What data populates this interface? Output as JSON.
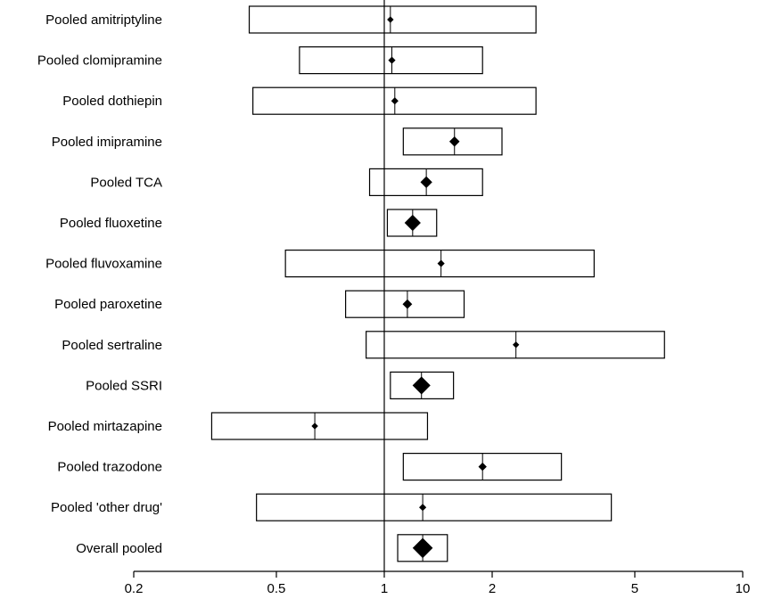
{
  "chart_data": {
    "type": "forest",
    "title": "",
    "xlabel": "",
    "ylabel": "",
    "x_scale": "log",
    "xlim": [
      0.2,
      10
    ],
    "x_ticks": [
      0.2,
      0.5,
      1,
      2,
      5,
      10
    ],
    "x_tick_labels": [
      "0.2",
      "0.5",
      "1",
      "2",
      "5",
      "10"
    ],
    "reference_line": 1,
    "rows": [
      {
        "label": "Pooled amitriptyline",
        "estimate": 1.04,
        "lower": 0.42,
        "upper": 2.65,
        "weight": 0.02
      },
      {
        "label": "Pooled clomipramine",
        "estimate": 1.05,
        "lower": 0.58,
        "upper": 1.88,
        "weight": 0.03
      },
      {
        "label": "Pooled dothiepin",
        "estimate": 1.07,
        "lower": 0.43,
        "upper": 2.65,
        "weight": 0.03
      },
      {
        "label": "Pooled imipramine",
        "estimate": 1.57,
        "lower": 1.13,
        "upper": 2.13,
        "weight": 0.1
      },
      {
        "label": "Pooled TCA",
        "estimate": 1.31,
        "lower": 0.91,
        "upper": 1.88,
        "weight": 0.15
      },
      {
        "label": "Pooled fluoxetine",
        "estimate": 1.2,
        "lower": 1.02,
        "upper": 1.4,
        "weight": 0.35
      },
      {
        "label": "Pooled fluvoxamine",
        "estimate": 1.44,
        "lower": 0.53,
        "upper": 3.85,
        "weight": 0.03
      },
      {
        "label": "Pooled paroxetine",
        "estimate": 1.16,
        "lower": 0.78,
        "upper": 1.67,
        "weight": 0.08
      },
      {
        "label": "Pooled sertraline",
        "estimate": 2.33,
        "lower": 0.89,
        "upper": 6.05,
        "weight": 0.02
      },
      {
        "label": "Pooled SSRI",
        "estimate": 1.27,
        "lower": 1.04,
        "upper": 1.56,
        "weight": 0.45
      },
      {
        "label": "Pooled mirtazapine",
        "estimate": 0.64,
        "lower": 0.33,
        "upper": 1.32,
        "weight": 0.02
      },
      {
        "label": "Pooled trazodone",
        "estimate": 1.88,
        "lower": 1.13,
        "upper": 3.12,
        "weight": 0.05
      },
      {
        "label": "Pooled 'other drug'",
        "estimate": 1.28,
        "lower": 0.44,
        "upper": 4.3,
        "weight": 0.03
      },
      {
        "label": "Overall pooled",
        "estimate": 1.28,
        "lower": 1.09,
        "upper": 1.5,
        "weight": 0.6
      }
    ]
  }
}
